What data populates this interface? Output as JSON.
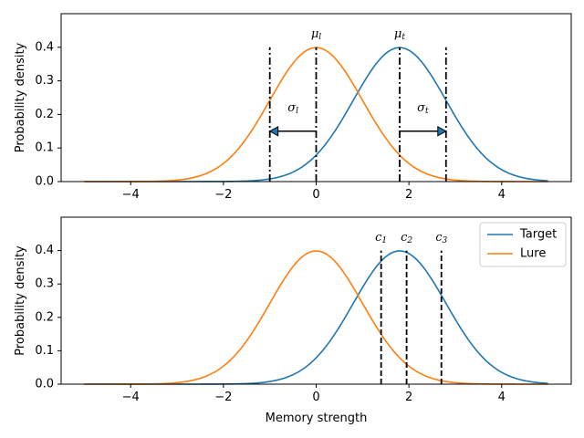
{
  "chart_data": [
    {
      "type": "line",
      "xlim": [
        -5.5,
        5.5
      ],
      "ylim": [
        0,
        0.5
      ],
      "xticks": [
        -4,
        -2,
        0,
        2,
        4
      ],
      "xtick_labels": [
        "−4",
        "−2",
        "0",
        "2",
        "4"
      ],
      "yticks": [
        0.0,
        0.1,
        0.2,
        0.3,
        0.4
      ],
      "ytick_labels": [
        "0.0",
        "0.1",
        "0.2",
        "0.3",
        "0.4"
      ],
      "xlabel": "",
      "ylabel": "Probability density",
      "x_range": [
        -5,
        5
      ],
      "series": [
        {
          "name": "Target",
          "mean": 1.8,
          "sd": 1.0,
          "color": "#1f77b4"
        },
        {
          "name": "Lure",
          "mean": 0.0,
          "sd": 1.0,
          "color": "#ff7f0e"
        }
      ],
      "dashdot_lines": [
        -1.0,
        0.0,
        1.8,
        2.8
      ],
      "vline_top": 0.4,
      "arrows": [
        {
          "from": 0.0,
          "to": -1.0,
          "y": 0.15,
          "label_main": "σ",
          "label_sub": "l",
          "label_x": -0.5,
          "label_y": 0.22
        },
        {
          "from": 1.8,
          "to": 2.8,
          "y": 0.15,
          "label_main": "σ",
          "label_sub": "t",
          "label_x": 2.3,
          "label_y": 0.22
        }
      ],
      "annotations": [
        {
          "main": "μ",
          "sub": "l",
          "x": 0.0,
          "y": 0.44
        },
        {
          "main": "μ",
          "sub": "t",
          "x": 1.8,
          "y": 0.44
        }
      ]
    },
    {
      "type": "line",
      "xlim": [
        -5.5,
        5.5
      ],
      "ylim": [
        0,
        0.5
      ],
      "xticks": [
        -4,
        -2,
        0,
        2,
        4
      ],
      "xtick_labels": [
        "−4",
        "−2",
        "0",
        "2",
        "4"
      ],
      "yticks": [
        0.0,
        0.1,
        0.2,
        0.3,
        0.4
      ],
      "ytick_labels": [
        "0.0",
        "0.1",
        "0.2",
        "0.3",
        "0.4"
      ],
      "xlabel": "Memory strength",
      "ylabel": "Probability density",
      "x_range": [
        -5,
        5
      ],
      "series": [
        {
          "name": "Target",
          "mean": 1.8,
          "sd": 1.0,
          "color": "#1f77b4"
        },
        {
          "name": "Lure",
          "mean": 0.0,
          "sd": 1.0,
          "color": "#ff7f0e"
        }
      ],
      "dashed_lines": [
        1.4,
        1.95,
        2.7
      ],
      "vline_top": 0.4,
      "annotations": [
        {
          "main": "c",
          "sub": "1",
          "x": 1.4,
          "y": 0.44
        },
        {
          "main": "c",
          "sub": "2",
          "x": 1.95,
          "y": 0.44
        },
        {
          "main": "c",
          "sub": "3",
          "x": 2.7,
          "y": 0.44
        }
      ],
      "legend": {
        "position": "upper right",
        "entries": [
          "Target",
          "Lure"
        ]
      }
    }
  ]
}
